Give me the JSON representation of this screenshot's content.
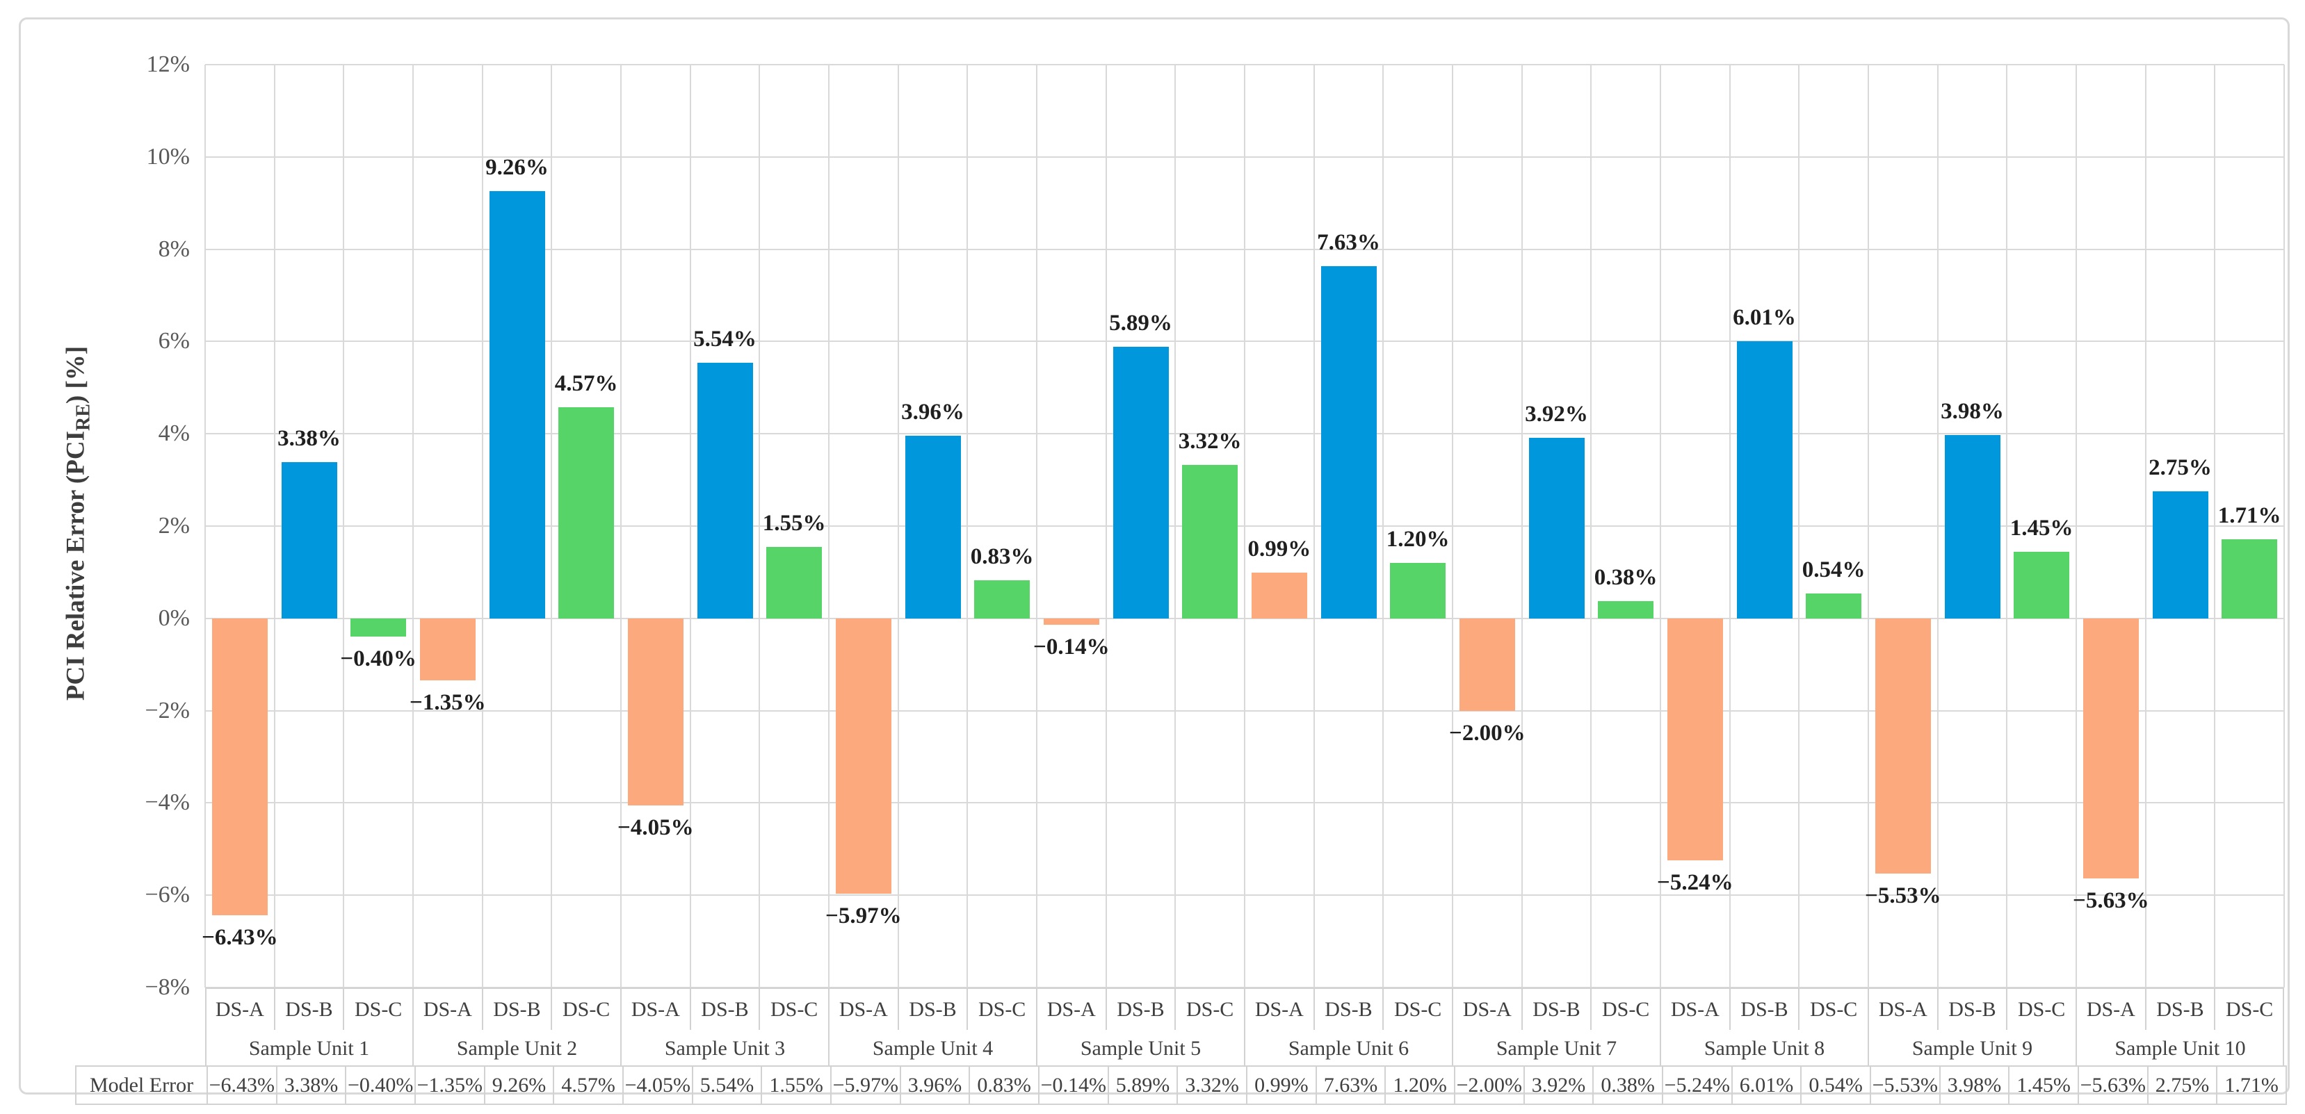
{
  "figure": {
    "y_axis_title": {
      "pre": "PCI Relative Error (PCI",
      "sub": "RE",
      "post": ") [%]"
    }
  },
  "chart_data": {
    "type": "bar",
    "title": "",
    "xlabel": "",
    "ylabel": "PCI Relative Error (PCI_RE) [%]",
    "ylim": [
      -8,
      12
    ],
    "ytick_step_percent": 2,
    "ytick_labels": [
      "12%",
      "10%",
      "8%",
      "6%",
      "4%",
      "2%",
      "0%",
      "−2%",
      "−4%",
      "−6%",
      "−8%"
    ],
    "grid": "both",
    "legend_position": "none",
    "categories": [
      "Sample Unit 1",
      "Sample Unit 2",
      "Sample Unit 3",
      "Sample Unit 4",
      "Sample Unit 5",
      "Sample Unit 6",
      "Sample Unit 7",
      "Sample Unit 8",
      "Sample Unit 9",
      "Sample Unit 10"
    ],
    "series": [
      {
        "name": "DS-A",
        "color": "#FBA97D",
        "values": [
          -6.43,
          -1.35,
          -4.05,
          -5.97,
          -0.14,
          0.99,
          -2.0,
          -5.24,
          -5.53,
          -5.63
        ],
        "labels": [
          "−6.43%",
          "−1.35%",
          "−4.05%",
          "−5.97%",
          "−0.14%",
          "0.99%",
          "−2.00%",
          "−5.24%",
          "−5.53%",
          "−5.63%"
        ]
      },
      {
        "name": "DS-B",
        "color": "#0097DC",
        "values": [
          3.38,
          9.26,
          5.54,
          3.96,
          5.89,
          7.63,
          3.92,
          6.01,
          3.98,
          2.75
        ],
        "labels": [
          "3.38%",
          "9.26%",
          "5.54%",
          "3.96%",
          "5.89%",
          "7.63%",
          "3.92%",
          "6.01%",
          "3.98%",
          "2.75%"
        ]
      },
      {
        "name": "DS-C",
        "color": "#56D467",
        "values": [
          -0.4,
          4.57,
          1.55,
          0.83,
          3.32,
          1.2,
          0.38,
          0.54,
          1.45,
          1.71
        ],
        "labels": [
          "−0.40%",
          "4.57%",
          "1.55%",
          "0.83%",
          "3.32%",
          "1.20%",
          "0.38%",
          "0.54%",
          "1.45%",
          "1.71%"
        ]
      }
    ],
    "data_table": {
      "row_label": "Model Error",
      "values": [
        "−6.43%",
        "3.38%",
        "−0.40%",
        "−1.35%",
        "9.26%",
        "4.57%",
        "−4.05%",
        "5.54%",
        "1.55%",
        "−5.97%",
        "3.96%",
        "0.83%",
        "−0.14%",
        "5.89%",
        "3.32%",
        "0.99%",
        "7.63%",
        "1.20%",
        "−2.00%",
        "3.92%",
        "0.38%",
        "−5.24%",
        "6.01%",
        "0.54%",
        "−5.53%",
        "3.98%",
        "1.45%",
        "−5.63%",
        "2.75%",
        "1.71%"
      ]
    }
  }
}
